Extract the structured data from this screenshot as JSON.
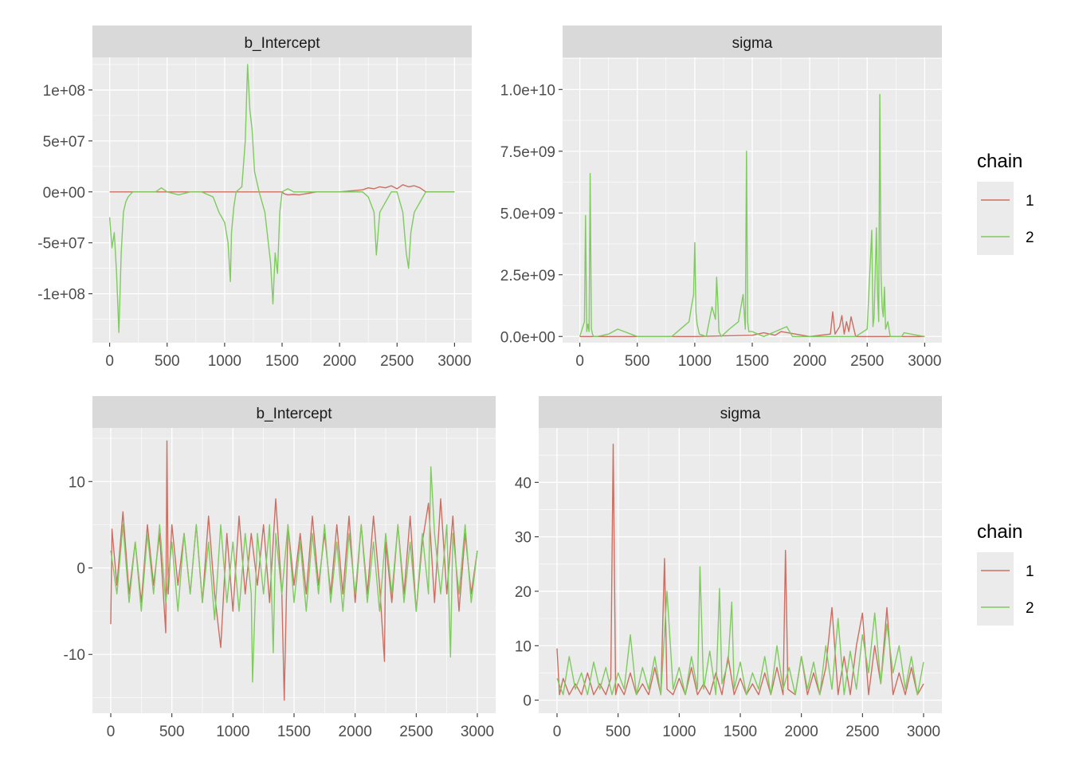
{
  "colors": {
    "panel_background": "#EBEBEB",
    "strip_background": "#D9D9D9",
    "grid_major": "#FFFFFF",
    "chain_1": "#CC6E61",
    "chain_2": "#7ECB5E"
  },
  "chart_data": [
    {
      "type": "line",
      "title": "b_Intercept",
      "xlim": [
        -150,
        3150
      ],
      "ylim": [
        -148000000,
        132000000
      ],
      "xticks": [
        0,
        500,
        1000,
        1500,
        2000,
        2500,
        3000
      ],
      "xtick_labels": [
        "0",
        "500",
        "1000",
        "1500",
        "2000",
        "2500",
        "3000"
      ],
      "yticks": [
        100000000,
        50000000,
        0,
        -50000000,
        -100000000
      ],
      "ytick_labels": [
        "1e+08",
        "5e+07",
        "0e+00",
        "-5e+07",
        "-1e+08"
      ],
      "series": [
        {
          "name": "1",
          "color": "#CC6E61",
          "x": [
            0,
            200,
            400,
            600,
            800,
            1000,
            1200,
            1400,
            1500,
            1520,
            1550,
            1600,
            1650,
            1700,
            1800,
            2000,
            2200,
            2250,
            2300,
            2350,
            2400,
            2450,
            2500,
            2550,
            2600,
            2650,
            2700,
            2750,
            3000
          ],
          "y": [
            0,
            0,
            0,
            0,
            0,
            0,
            0,
            0,
            0,
            -2000000,
            -3000000,
            -2500000,
            -3000000,
            -2000000,
            0,
            0,
            2000000,
            4000000,
            3000000,
            5000000,
            4000000,
            6000000,
            3000000,
            7000000,
            5000000,
            6000000,
            4000000,
            0,
            0
          ]
        },
        {
          "name": "2",
          "color": "#7ECB5E",
          "x": [
            0,
            20,
            40,
            60,
            80,
            100,
            120,
            140,
            160,
            200,
            300,
            400,
            450,
            500,
            600,
            700,
            800,
            900,
            950,
            1000,
            1030,
            1050,
            1060,
            1080,
            1100,
            1150,
            1180,
            1200,
            1220,
            1240,
            1260,
            1280,
            1300,
            1350,
            1380,
            1400,
            1420,
            1440,
            1460,
            1480,
            1500,
            1550,
            1600,
            1700,
            1800,
            1900,
            2000,
            2100,
            2200,
            2250,
            2300,
            2320,
            2350,
            2400,
            2450,
            2500,
            2550,
            2580,
            2600,
            2620,
            2650,
            2700,
            2750,
            3000
          ],
          "y": [
            -25000000,
            -55000000,
            -40000000,
            -80000000,
            -138000000,
            -60000000,
            -20000000,
            -10000000,
            -5000000,
            0,
            0,
            0,
            4000000,
            0,
            -3000000,
            0,
            0,
            -5000000,
            -20000000,
            -30000000,
            -50000000,
            -88000000,
            -40000000,
            -15000000,
            0,
            5000000,
            50000000,
            125000000,
            80000000,
            60000000,
            20000000,
            10000000,
            0,
            -20000000,
            -50000000,
            -70000000,
            -110000000,
            -60000000,
            -80000000,
            -20000000,
            0,
            3000000,
            0,
            0,
            0,
            0,
            0,
            0,
            0,
            -5000000,
            -20000000,
            -62000000,
            -20000000,
            -10000000,
            0,
            0,
            -20000000,
            -60000000,
            -75000000,
            -40000000,
            -20000000,
            -10000000,
            0,
            0
          ]
        }
      ]
    },
    {
      "type": "line",
      "title": "sigma",
      "xlim": [
        -150,
        3150
      ],
      "ylim": [
        -250000000,
        11300000000
      ],
      "xticks": [
        0,
        500,
        1000,
        1500,
        2000,
        2500,
        3000
      ],
      "xtick_labels": [
        "0",
        "500",
        "1000",
        "1500",
        "2000",
        "2500",
        "3000"
      ],
      "yticks": [
        0,
        2500000000,
        5000000000,
        7500000000,
        10000000000
      ],
      "ytick_labels": [
        "0.0e+00",
        "2.5e+09",
        "5.0e+09",
        "7.5e+09",
        "1.0e+10"
      ],
      "series": [
        {
          "name": "1",
          "color": "#CC6E61",
          "x": [
            0,
            500,
            1000,
            1500,
            1600,
            1700,
            1750,
            2000,
            2180,
            2200,
            2220,
            2260,
            2280,
            2300,
            2320,
            2340,
            2360,
            2400,
            2500,
            2600,
            3000
          ],
          "y": [
            0,
            0,
            0,
            50000000,
            150000000,
            50000000,
            200000000,
            0,
            100000000,
            1000000000,
            100000000,
            400000000,
            850000000,
            100000000,
            600000000,
            200000000,
            800000000,
            0,
            0,
            0,
            0
          ]
        },
        {
          "name": "2",
          "color": "#7ECB5E",
          "x": [
            0,
            20,
            40,
            50,
            60,
            70,
            80,
            90,
            100,
            110,
            120,
            150,
            250,
            330,
            500,
            800,
            950,
            970,
            990,
            1000,
            1010,
            1020,
            1040,
            1100,
            1150,
            1180,
            1190,
            1200,
            1210,
            1230,
            1300,
            1380,
            1420,
            1440,
            1450,
            1460,
            1470,
            1500,
            1600,
            1800,
            1850,
            2000,
            2100,
            2400,
            2500,
            2540,
            2550,
            2560,
            2580,
            2590,
            2600,
            2610,
            2620,
            2630,
            2640,
            2650,
            2660,
            2680,
            2700,
            2800,
            2820,
            3000
          ],
          "y": [
            0,
            300000000,
            600000000,
            4900000000,
            200000000,
            500000000,
            200000000,
            6600000000,
            300000000,
            100000000,
            0,
            0,
            100000000,
            300000000,
            0,
            0,
            600000000,
            1200000000,
            1700000000,
            3800000000,
            1000000000,
            500000000,
            100000000,
            0,
            1200000000,
            700000000,
            2400000000,
            1500000000,
            200000000,
            0,
            300000000,
            600000000,
            1700000000,
            300000000,
            7500000000,
            600000000,
            200000000,
            200000000,
            0,
            400000000,
            0,
            0,
            0,
            0,
            300000000,
            4300000000,
            400000000,
            800000000,
            4400000000,
            1800000000,
            600000000,
            9800000000,
            2500000000,
            1200000000,
            800000000,
            2000000000,
            300000000,
            600000000,
            0,
            0,
            150000000,
            0
          ]
        }
      ]
    },
    {
      "type": "line",
      "title": "b_Intercept",
      "xlim": [
        -150,
        3150
      ],
      "ylim": [
        -16800000,
        16200000
      ],
      "xticks": [
        0,
        500,
        1000,
        1500,
        2000,
        2500,
        3000
      ],
      "xtick_labels": [
        "0",
        "500",
        "1000",
        "1500",
        "2000",
        "2500",
        "3000"
      ],
      "yticks": [
        10,
        0,
        -10
      ],
      "ytick_labels": [
        "10",
        "0",
        "-10"
      ],
      "ylim_units": [
        -16.8,
        16.2
      ],
      "series": [
        {
          "name": "1",
          "color": "#CC6E61",
          "x": [
            0,
            10,
            50,
            100,
            150,
            200,
            250,
            300,
            350,
            400,
            450,
            460,
            470,
            500,
            550,
            600,
            650,
            700,
            750,
            800,
            850,
            900,
            950,
            1000,
            1050,
            1100,
            1150,
            1200,
            1250,
            1300,
            1350,
            1400,
            1420,
            1450,
            1500,
            1550,
            1600,
            1650,
            1700,
            1750,
            1800,
            1850,
            1900,
            1950,
            2000,
            2050,
            2100,
            2150,
            2200,
            2240,
            2250,
            2300,
            2350,
            2400,
            2450,
            2500,
            2550,
            2600,
            2650,
            2700,
            2750,
            2800,
            2850,
            2900,
            2950,
            3000
          ],
          "y": [
            -6.5,
            4.5,
            -2,
            6.5,
            -3,
            3,
            -4,
            5,
            -2,
            4,
            -7.5,
            14.7,
            -3,
            5,
            -2,
            4,
            -3,
            5,
            -4,
            6,
            -3,
            -9.2,
            4,
            -5,
            6,
            -3,
            4,
            -2,
            5,
            -4,
            8,
            -3,
            -15.3,
            5,
            -2,
            4,
            -3,
            6,
            -2,
            4,
            -3,
            5,
            -3,
            6,
            -4,
            5,
            -3,
            6,
            -2,
            -10.8,
            3,
            -4,
            5,
            -3,
            6,
            -5,
            3,
            7.5,
            -4,
            8,
            -3,
            6,
            -5,
            4,
            -3,
            2
          ]
        },
        {
          "name": "2",
          "color": "#7ECB5E",
          "x": [
            0,
            50,
            100,
            150,
            200,
            250,
            300,
            350,
            400,
            450,
            500,
            550,
            600,
            650,
            700,
            750,
            800,
            850,
            900,
            950,
            1000,
            1050,
            1100,
            1150,
            1160,
            1200,
            1250,
            1300,
            1330,
            1350,
            1400,
            1450,
            1500,
            1550,
            1600,
            1650,
            1700,
            1750,
            1800,
            1850,
            1900,
            1950,
            2000,
            2050,
            2100,
            2150,
            2200,
            2250,
            2300,
            2350,
            2400,
            2450,
            2500,
            2550,
            2600,
            2620,
            2650,
            2700,
            2750,
            2780,
            2800,
            2850,
            2900,
            2950,
            3000
          ],
          "y": [
            2,
            -3,
            5,
            -4,
            3,
            -5,
            4,
            -3,
            5,
            -4,
            3,
            -5,
            4,
            -3,
            5,
            -4,
            3,
            -6,
            5,
            -4,
            3,
            -5,
            4,
            -3,
            -13.2,
            4,
            -3,
            5,
            -9.8,
            4,
            -3,
            5,
            -4,
            3,
            -5,
            4,
            -3,
            5,
            -4,
            3,
            -5,
            4,
            -3,
            5,
            -4,
            3,
            -5,
            4,
            -3,
            5,
            -4,
            3,
            -5,
            4,
            -3,
            11.7,
            4,
            -3,
            5,
            -10.3,
            4,
            -3,
            5,
            -4,
            2
          ]
        }
      ]
    },
    {
      "type": "line",
      "title": "sigma",
      "xlim": [
        -150,
        3150
      ],
      "ylim": [
        -2.4,
        50
      ],
      "xticks": [
        0,
        500,
        1000,
        1500,
        2000,
        2500,
        3000
      ],
      "xtick_labels": [
        "0",
        "500",
        "1000",
        "1500",
        "2000",
        "2500",
        "3000"
      ],
      "yticks": [
        0,
        10,
        20,
        30,
        40
      ],
      "ytick_labels": [
        "0",
        "10",
        "20",
        "30",
        "40"
      ],
      "series": [
        {
          "name": "1",
          "color": "#CC6E61",
          "x": [
            0,
            20,
            50,
            100,
            150,
            200,
            250,
            300,
            350,
            400,
            440,
            460,
            480,
            500,
            550,
            600,
            650,
            700,
            750,
            800,
            850,
            880,
            900,
            950,
            1000,
            1050,
            1100,
            1150,
            1200,
            1250,
            1300,
            1350,
            1400,
            1450,
            1500,
            1550,
            1600,
            1650,
            1700,
            1750,
            1800,
            1850,
            1870,
            1890,
            1950,
            2000,
            2050,
            2100,
            2150,
            2200,
            2250,
            2300,
            2350,
            2400,
            2450,
            2500,
            2550,
            2600,
            2650,
            2700,
            2750,
            2800,
            2850,
            2900,
            2950,
            3000
          ],
          "y": [
            9.5,
            1,
            4,
            1,
            3,
            1,
            5,
            1,
            3,
            1,
            4,
            47,
            1,
            3,
            1,
            5,
            1,
            3,
            1,
            6,
            1,
            26,
            2,
            1,
            4,
            1,
            6,
            1,
            3,
            1,
            5,
            1,
            8,
            1,
            4,
            1,
            3,
            1,
            5,
            1,
            6,
            1,
            27.5,
            2,
            1,
            8,
            1,
            5,
            1,
            6,
            17,
            1,
            8,
            1,
            10,
            16,
            1,
            10,
            3,
            17,
            1,
            5,
            1,
            6,
            1,
            3
          ]
        },
        {
          "name": "2",
          "color": "#7ECB5E",
          "x": [
            0,
            50,
            100,
            150,
            200,
            250,
            300,
            350,
            400,
            450,
            500,
            550,
            600,
            650,
            700,
            750,
            800,
            850,
            900,
            950,
            1000,
            1050,
            1100,
            1150,
            1170,
            1200,
            1250,
            1300,
            1330,
            1350,
            1400,
            1430,
            1450,
            1500,
            1550,
            1600,
            1650,
            1700,
            1750,
            1800,
            1850,
            1900,
            1950,
            2000,
            2050,
            2100,
            2150,
            2200,
            2250,
            2300,
            2350,
            2400,
            2450,
            2500,
            2550,
            2600,
            2650,
            2700,
            2750,
            2800,
            2850,
            2900,
            2950,
            3000
          ],
          "y": [
            4,
            1,
            8,
            2,
            5,
            1,
            7,
            2,
            6,
            1,
            5,
            2,
            12,
            1,
            6,
            2,
            8,
            1,
            20,
            2,
            6,
            1,
            8,
            2,
            24.5,
            2,
            9,
            1,
            20.5,
            3,
            7,
            18,
            2,
            7,
            1,
            5,
            2,
            8,
            1,
            10,
            2,
            6,
            1,
            8,
            2,
            7,
            1,
            10,
            2,
            15,
            1,
            9,
            2,
            12,
            5,
            16,
            3,
            14,
            5,
            10,
            2,
            8,
            1,
            7
          ]
        }
      ]
    }
  ],
  "legends": [
    {
      "title": "chain",
      "entries": [
        {
          "label": "1",
          "color": "#CC6E61"
        },
        {
          "label": "2",
          "color": "#7ECB5E"
        }
      ]
    },
    {
      "title": "chain",
      "entries": [
        {
          "label": "1",
          "color": "#CC6E61"
        },
        {
          "label": "2",
          "color": "#7ECB5E"
        }
      ]
    }
  ]
}
